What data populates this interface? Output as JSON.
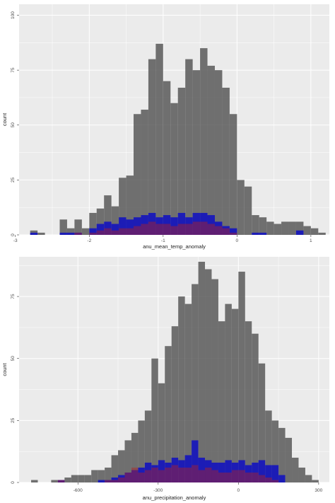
{
  "colors": {
    "panel_background": "#ebebeb",
    "grid_line": "#ffffff",
    "all_bars": "#595959",
    "blue_bars": "#0000cd",
    "red_bars": "#b22222"
  },
  "chart_data": [
    {
      "type": "bar",
      "xlabel": "anu_mean_temp_anomaly",
      "ylabel": "count",
      "xlim": [
        -2.95,
        1.25
      ],
      "ylim": [
        0,
        105
      ],
      "x_ticks": [
        -3,
        -2,
        -1,
        0,
        1
      ],
      "y_ticks": [
        0,
        25,
        50,
        75,
        100
      ],
      "bin_width": 0.1,
      "grid": true,
      "series": [
        {
          "bins_start": [
            -2.8,
            -2.7,
            -2.6,
            -2.5,
            -2.4,
            -2.3,
            -2.2,
            -2.1,
            -2.0,
            -1.9,
            -1.8,
            -1.7,
            -1.6,
            -1.5,
            -1.4,
            -1.3,
            -1.2,
            -1.1,
            -1.0,
            -0.9,
            -0.8,
            -0.7,
            -0.6,
            -0.5,
            -0.4,
            -0.3,
            -0.2,
            -0.1,
            0.0,
            0.1,
            0.2,
            0.3,
            0.4,
            0.5,
            0.6,
            0.7,
            0.8,
            0.9,
            1.0,
            1.1
          ],
          "values": [
            2,
            1,
            0,
            0,
            7,
            3,
            7,
            3,
            10,
            12,
            18,
            13,
            26,
            27,
            55,
            57,
            80,
            87,
            70,
            60,
            67,
            80,
            75,
            85,
            77,
            75,
            67,
            55,
            25,
            22,
            9,
            8,
            6,
            5,
            6,
            6,
            6,
            4,
            3,
            1
          ]
        },
        {
          "bins_start": [
            -2.8,
            -2.7,
            -2.6,
            -2.5,
            -2.4,
            -2.3,
            -2.2,
            -2.1,
            -2.0,
            -1.9,
            -1.8,
            -1.7,
            -1.6,
            -1.5,
            -1.4,
            -1.3,
            -1.2,
            -1.1,
            -1.0,
            -0.9,
            -0.8,
            -0.7,
            -0.6,
            -0.5,
            -0.4,
            -0.3,
            -0.2,
            -0.1,
            0.0,
            0.1,
            0.2,
            0.3,
            0.4,
            0.5,
            0.6,
            0.7,
            0.8,
            0.9,
            1.0,
            1.1
          ],
          "values": [
            1,
            0,
            0,
            0,
            1,
            1,
            1,
            0,
            3,
            5,
            6,
            5,
            8,
            7,
            8,
            9,
            10,
            8,
            9,
            8,
            10,
            8,
            10,
            10,
            9,
            6,
            4,
            3,
            0,
            0,
            1,
            1,
            0,
            0,
            0,
            0,
            2,
            0,
            0,
            0
          ]
        },
        {
          "bins_start": [
            -2.8,
            -2.7,
            -2.6,
            -2.5,
            -2.4,
            -2.3,
            -2.2,
            -2.1,
            -2.0,
            -1.9,
            -1.8,
            -1.7,
            -1.6,
            -1.5,
            -1.4,
            -1.3,
            -1.2,
            -1.1,
            -1.0,
            -0.9,
            -0.8,
            -0.7,
            -0.6,
            -0.5,
            -0.4,
            -0.3,
            -0.2,
            -0.1,
            0.0,
            0.1,
            0.2,
            0.3,
            0.4,
            0.5,
            0.6,
            0.7,
            0.8,
            0.9,
            1.0,
            1.1
          ],
          "values": [
            0,
            0,
            0,
            0,
            0,
            0,
            1,
            0,
            1,
            2,
            3,
            2,
            3,
            3,
            4,
            5,
            6,
            5,
            5,
            4,
            5,
            5,
            6,
            6,
            5,
            4,
            3,
            1,
            0,
            0,
            0,
            0,
            0,
            0,
            0,
            0,
            0,
            0,
            0,
            0
          ]
        }
      ]
    },
    {
      "type": "bar",
      "xlabel": "anu_precipitation_anomaly",
      "ylabel": "count",
      "xlim": [
        -820,
        340
      ],
      "ylim": [
        0,
        91
      ],
      "x_ticks": [
        -600,
        -300,
        0,
        300
      ],
      "y_ticks": [
        0,
        25,
        50,
        75
      ],
      "bin_width": 25,
      "grid": true,
      "series": [
        {
          "bins_start": [
            -825,
            -800,
            -775,
            -750,
            -725,
            -700,
            -675,
            -650,
            -625,
            -600,
            -575,
            -550,
            -525,
            -500,
            -475,
            -450,
            -425,
            -400,
            -375,
            -350,
            -325,
            -300,
            -275,
            -250,
            -225,
            -200,
            -175,
            -150,
            -125,
            -100,
            -75,
            -50,
            -25,
            0,
            25,
            50,
            75,
            100,
            125,
            150,
            175,
            200,
            225,
            250,
            275
          ],
          "values": [
            0,
            0,
            1,
            0,
            0,
            1,
            1,
            2,
            3,
            3,
            3,
            5,
            5,
            6,
            11,
            13,
            17,
            20,
            25,
            29,
            50,
            40,
            55,
            63,
            75,
            72,
            80,
            89,
            86,
            82,
            65,
            72,
            70,
            85,
            65,
            60,
            48,
            29,
            25,
            22,
            18,
            10,
            6,
            3,
            1
          ]
        },
        {
          "bins_start": [
            -825,
            -800,
            -775,
            -750,
            -725,
            -700,
            -675,
            -650,
            -625,
            -600,
            -575,
            -550,
            -525,
            -500,
            -475,
            -450,
            -425,
            -400,
            -375,
            -350,
            -325,
            -300,
            -275,
            -250,
            -225,
            -200,
            -175,
            -150,
            -125,
            -100,
            -75,
            -50,
            -25,
            0,
            25,
            50,
            75,
            100,
            125,
            150,
            175,
            200,
            225,
            250,
            275
          ],
          "values": [
            0,
            0,
            0,
            0,
            0,
            0,
            1,
            0,
            0,
            0,
            0,
            0,
            1,
            1,
            2,
            3,
            4,
            5,
            6,
            8,
            7,
            9,
            8,
            10,
            9,
            11,
            17,
            10,
            9,
            8,
            8,
            9,
            8,
            9,
            7,
            8,
            9,
            7,
            7,
            3,
            0,
            0,
            0,
            0,
            0
          ]
        },
        {
          "bins_start": [
            -825,
            -800,
            -775,
            -750,
            -725,
            -700,
            -675,
            -650,
            -625,
            -600,
            -575,
            -550,
            -525,
            -500,
            -475,
            -450,
            -425,
            -400,
            -375,
            -350,
            -325,
            -300,
            -275,
            -250,
            -225,
            -200,
            -175,
            -150,
            -125,
            -100,
            -75,
            -50,
            -25,
            0,
            25,
            50,
            75,
            100,
            125,
            150,
            175,
            200,
            225,
            250,
            275
          ],
          "values": [
            0,
            0,
            0,
            0,
            0,
            0,
            1,
            0,
            0,
            0,
            0,
            0,
            0,
            1,
            1,
            2,
            4,
            6,
            4,
            5,
            6,
            5,
            6,
            7,
            6,
            6,
            7,
            5,
            6,
            5,
            4,
            4,
            5,
            5,
            4,
            4,
            3,
            2,
            1,
            0,
            0,
            0,
            0,
            0,
            0
          ]
        }
      ]
    }
  ]
}
